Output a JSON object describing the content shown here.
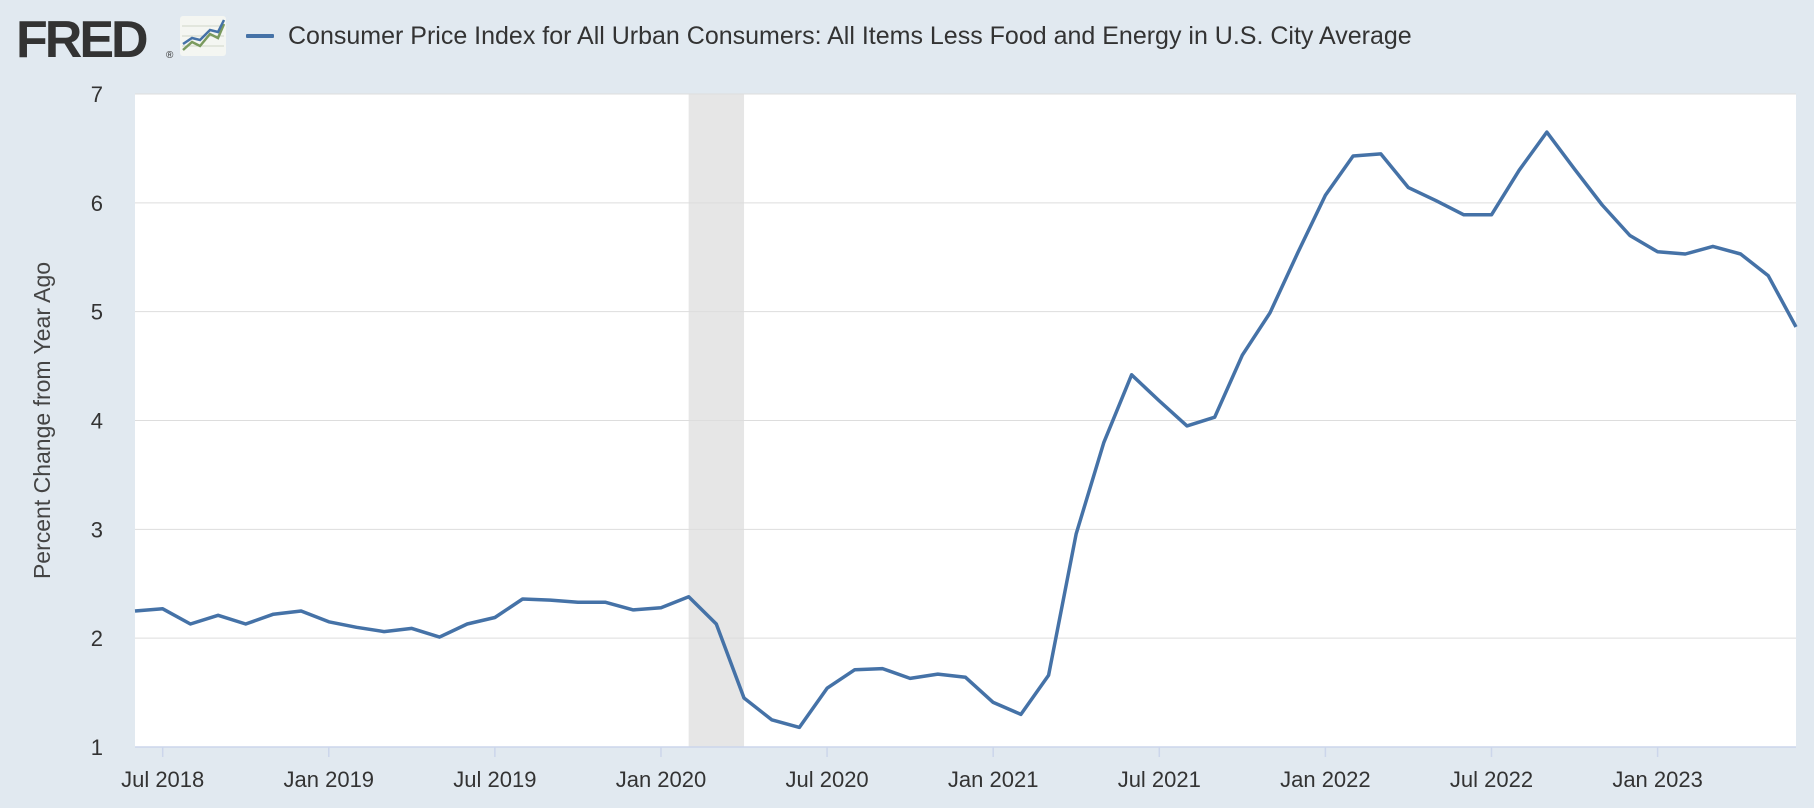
{
  "header": {
    "logo_text": "FRED",
    "logo_reg": "®",
    "legend_label": "Consumer Price Index for All Urban Consumers: All Items Less Food and Energy in U.S. City Average"
  },
  "colors": {
    "background": "#e1e9f0",
    "plot_background": "#ffffff",
    "series": "#4572a7",
    "recession": "#e6e6e6",
    "grid": "#dddddd"
  },
  "chart_data": {
    "type": "line",
    "title": "",
    "xlabel": "",
    "ylabel": "Percent Change from Year Ago",
    "ylim": [
      1,
      7
    ],
    "yticks": [
      1,
      2,
      3,
      4,
      5,
      6,
      7
    ],
    "xlim": [
      "2018-06",
      "2023-06"
    ],
    "xticks": [
      {
        "date": "2018-07",
        "label": "Jul 2018"
      },
      {
        "date": "2019-01",
        "label": "Jan 2019"
      },
      {
        "date": "2019-07",
        "label": "Jul 2019"
      },
      {
        "date": "2020-01",
        "label": "Jan 2020"
      },
      {
        "date": "2020-07",
        "label": "Jul 2020"
      },
      {
        "date": "2021-01",
        "label": "Jan 2021"
      },
      {
        "date": "2021-07",
        "label": "Jul 2021"
      },
      {
        "date": "2022-01",
        "label": "Jan 2022"
      },
      {
        "date": "2022-07",
        "label": "Jul 2022"
      },
      {
        "date": "2023-01",
        "label": "Jan 2023"
      }
    ],
    "grid": "horizontal",
    "recession_shading": [
      {
        "start": "2020-02",
        "end": "2020-04"
      }
    ],
    "series": [
      {
        "x": [
          "2018-06",
          "2018-07",
          "2018-08",
          "2018-09",
          "2018-10",
          "2018-11",
          "2018-12",
          "2019-01",
          "2019-02",
          "2019-03",
          "2019-04",
          "2019-05",
          "2019-06",
          "2019-07",
          "2019-08",
          "2019-09",
          "2019-10",
          "2019-11",
          "2019-12",
          "2020-01",
          "2020-02",
          "2020-03",
          "2020-04",
          "2020-05",
          "2020-06",
          "2020-07",
          "2020-08",
          "2020-09",
          "2020-10",
          "2020-11",
          "2020-12",
          "2021-01",
          "2021-02",
          "2021-03",
          "2021-04",
          "2021-05",
          "2021-06",
          "2021-07",
          "2021-08",
          "2021-09",
          "2021-10",
          "2021-11",
          "2021-12",
          "2022-01",
          "2022-02",
          "2022-03",
          "2022-04",
          "2022-05",
          "2022-06",
          "2022-07",
          "2022-08",
          "2022-09",
          "2022-10",
          "2022-11",
          "2022-12",
          "2023-01",
          "2023-02",
          "2023-03",
          "2023-04",
          "2023-05",
          "2023-06"
        ],
        "values": [
          2.25,
          2.27,
          2.13,
          2.21,
          2.13,
          2.22,
          2.25,
          2.15,
          2.1,
          2.06,
          2.09,
          2.01,
          2.13,
          2.19,
          2.36,
          2.35,
          2.33,
          2.33,
          2.26,
          2.28,
          2.38,
          2.13,
          1.45,
          1.25,
          1.18,
          1.54,
          1.71,
          1.72,
          1.63,
          1.67,
          1.64,
          1.41,
          1.3,
          1.66,
          2.96,
          3.8,
          4.42,
          4.18,
          3.95,
          4.03,
          4.6,
          4.99,
          5.54,
          6.07,
          6.43,
          6.45,
          6.14,
          6.02,
          5.89,
          5.89,
          6.3,
          6.65,
          6.31,
          5.98,
          5.7,
          5.55,
          5.53,
          5.6,
          5.53,
          5.33,
          4.86
        ]
      }
    ]
  }
}
